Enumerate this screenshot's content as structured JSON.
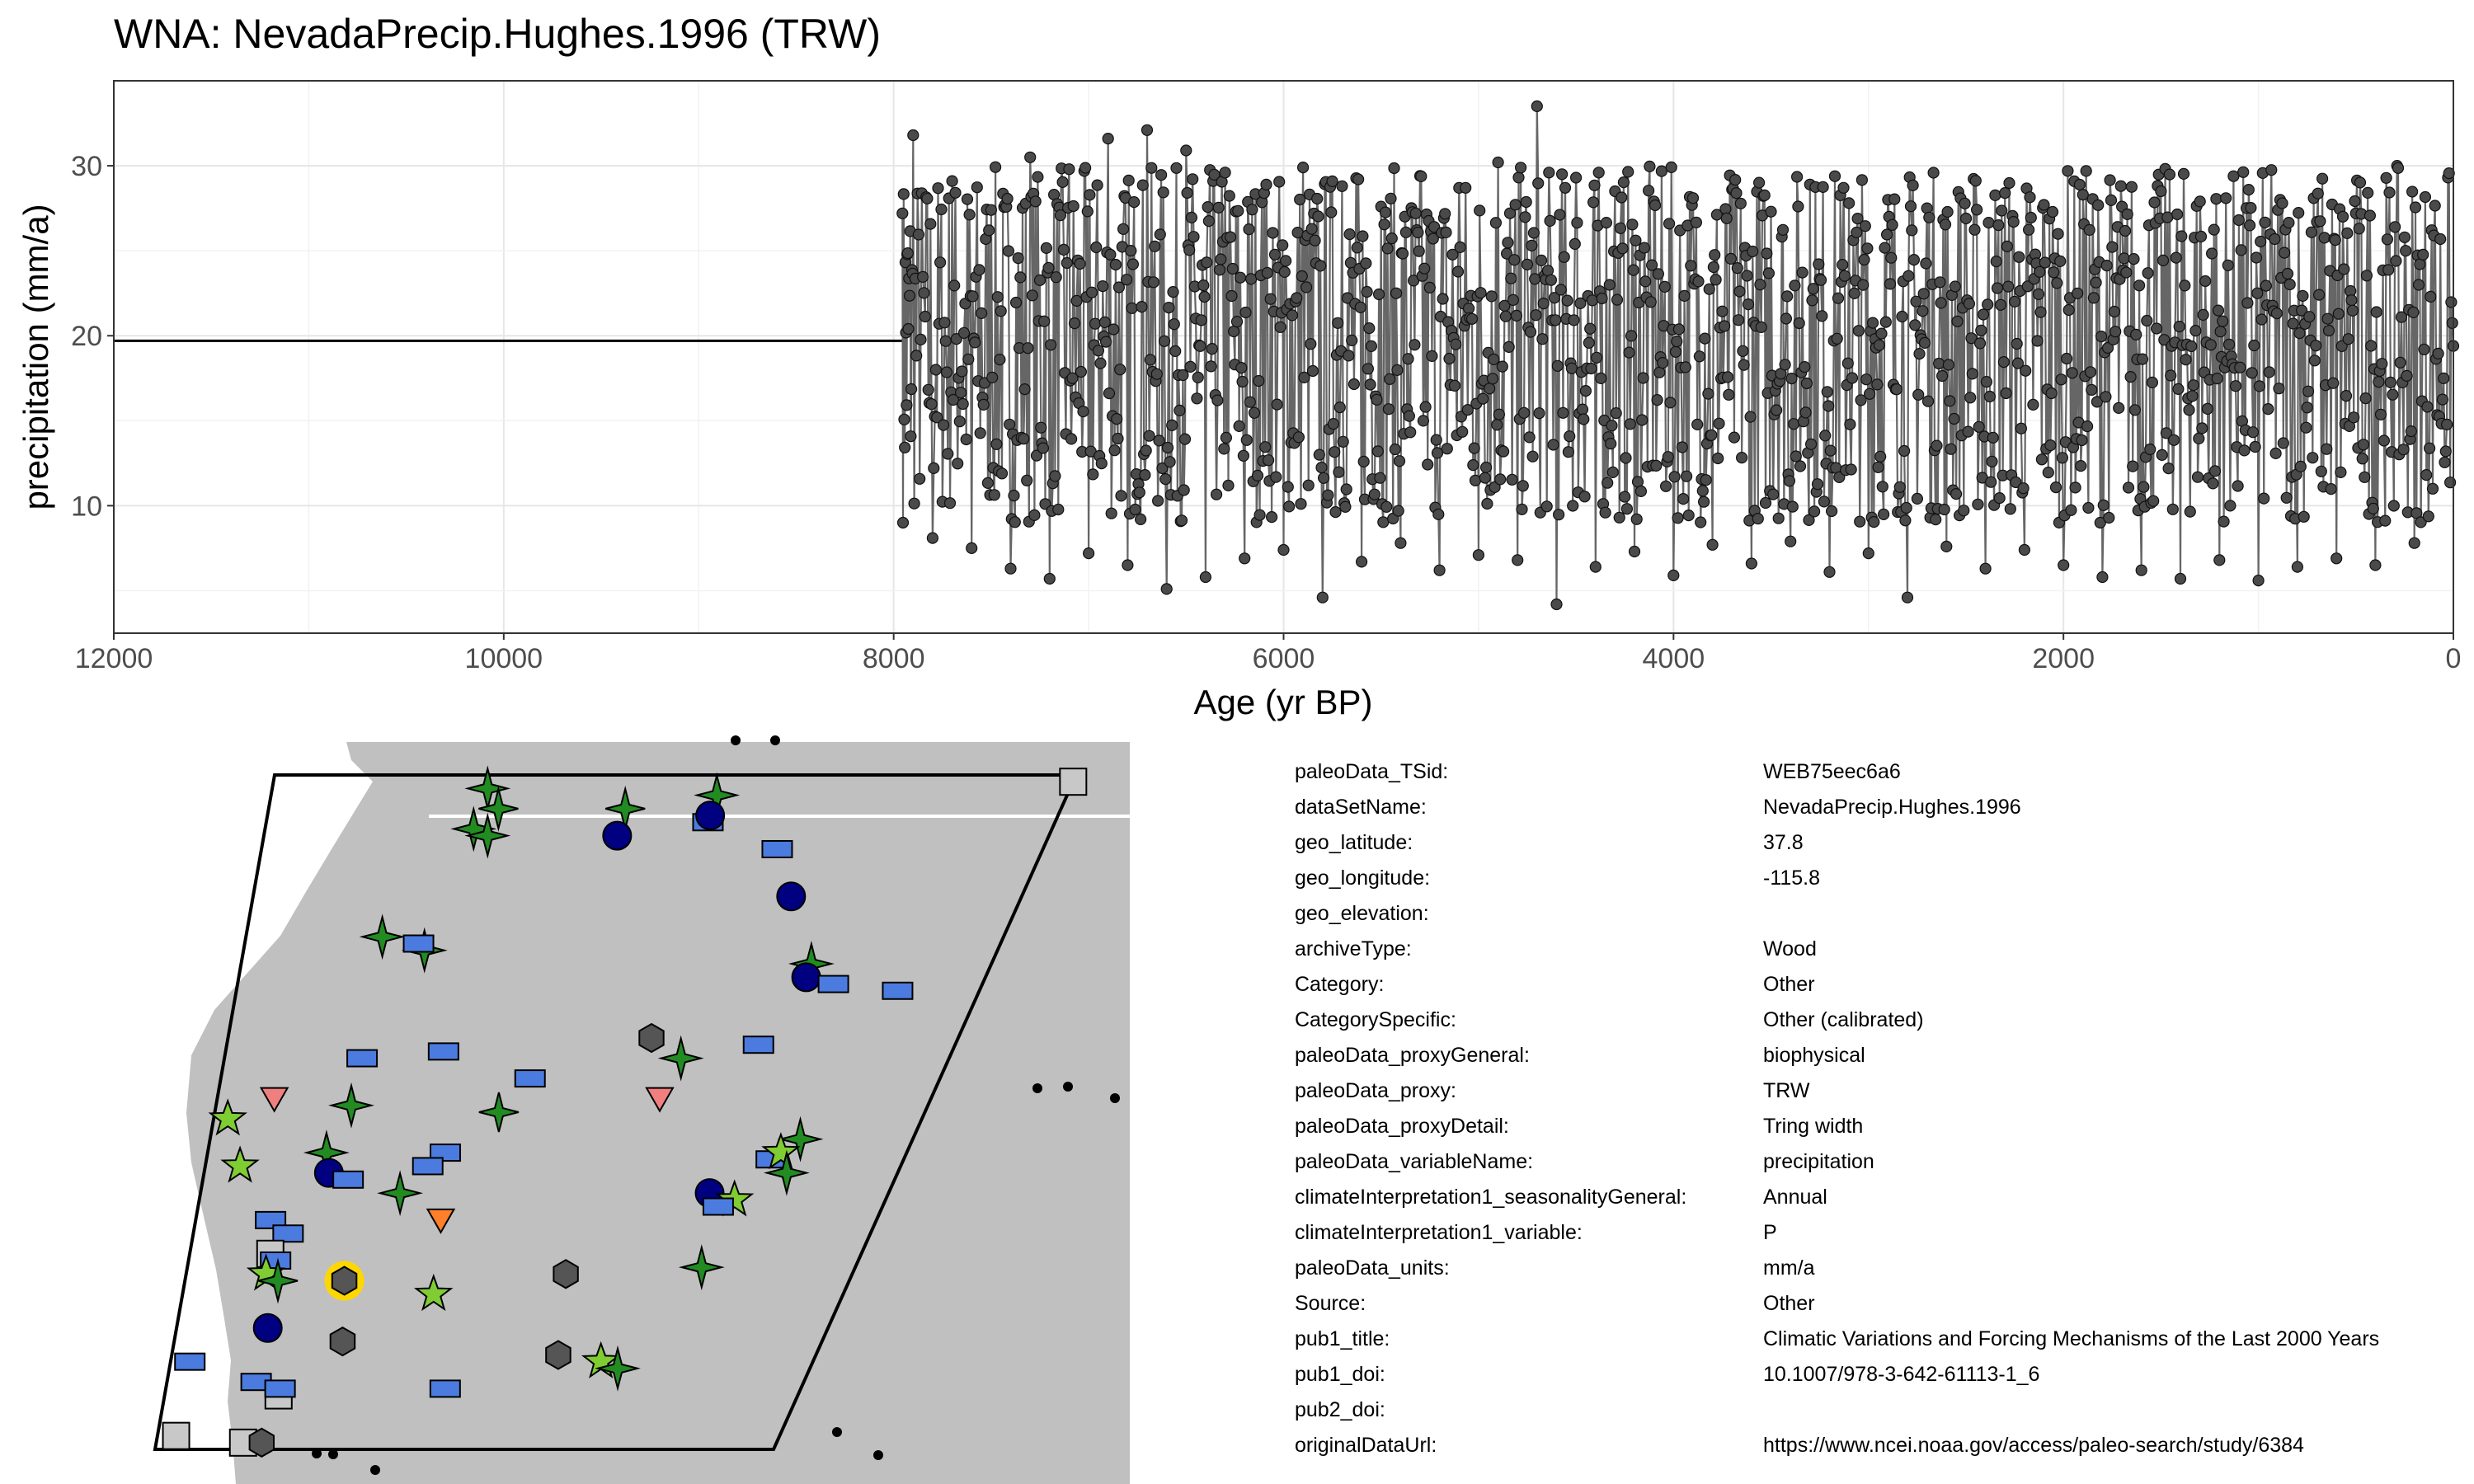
{
  "title": "WNA: NevadaPrecip.Hughes.1996 (TRW)",
  "chart_data": {
    "type": "line",
    "title": "WNA: NevadaPrecip.Hughes.1996 (TRW)",
    "xlabel": "Age (yr BP)",
    "ylabel": "precipitation (mm/a)",
    "xlim": [
      12000,
      0
    ],
    "x_reversed": true,
    "ylim": [
      2.5,
      35
    ],
    "x_ticks": [
      12000,
      10000,
      8000,
      6000,
      4000,
      2000,
      0
    ],
    "y_ticks": [
      10,
      20,
      30
    ],
    "grid": true,
    "record_age_range": [
      7955,
      0
    ],
    "record_value_range": [
      4,
      33.5
    ],
    "mean_before_record": 19.7,
    "series": [
      {
        "note_x": [
          7955,
          7900,
          7800,
          7700,
          7600,
          7500,
          7400,
          7300,
          7200,
          7100,
          7000,
          6900,
          6800,
          6700,
          6600,
          6500,
          6400,
          6300,
          6200,
          6100,
          6000,
          5900,
          5800,
          5700,
          5600,
          5500,
          5400,
          5300,
          5200,
          5100,
          5000,
          4900,
          4800,
          4700,
          4600,
          4500,
          4400,
          4300,
          4200,
          4100,
          4000,
          3900,
          3800,
          3700,
          3600,
          3500,
          3400,
          3300,
          3200,
          3100,
          3000,
          2900,
          2800,
          2700,
          2600,
          2500,
          2400,
          2300,
          2200,
          2100,
          2000,
          1900,
          1800,
          1700,
          1600,
          1500,
          1400,
          1300,
          1200,
          1100,
          1000,
          900,
          800,
          700,
          600,
          500,
          400,
          300,
          200,
          100,
          0
        ],
        "values": [
          27.2,
          31.8,
          8.1,
          29.1,
          7.5,
          27.4,
          6.3,
          30.5,
          5.7,
          29.8,
          7.2,
          31.6,
          6.5,
          32.1,
          5.1,
          30.9,
          5.8,
          29.6,
          6.9,
          28.4,
          7.4,
          29.9,
          4.6,
          28.8,
          6.7,
          27.6,
          7.8,
          29.4,
          6.2,
          28.7,
          7.1,
          30.2,
          6.8,
          33.5,
          4.2,
          29.3,
          6.4,
          28.5,
          7.3,
          27.9,
          5.9,
          28.1,
          7.7,
          28.6,
          6.6,
          27.3,
          7.9,
          28.9,
          6.1,
          27.8,
          7.2,
          28.0,
          4.6,
          27.5,
          7.6,
          26.9,
          6.3,
          28.4,
          7.4,
          27.7,
          6.5,
          28.3,
          5.8,
          27.6,
          6.2,
          28.5,
          5.7,
          27.9,
          6.8,
          26.8,
          5.6,
          27.4,
          6.4,
          26.7,
          6.9,
          27.2,
          6.5,
          26.4,
          7.8,
          25.9,
          19.4
        ]
      }
    ]
  },
  "map": {
    "land_color": "#c0c0c0",
    "water_color": "#ffffff",
    "symbols": [
      {
        "shape": "star4",
        "color": "#228b22",
        "u": 0.27,
        "v": 0.02
      },
      {
        "shape": "star4",
        "color": "#228b22",
        "u": 0.29,
        "v": 0.05
      },
      {
        "shape": "star4",
        "color": "#228b22",
        "u": 0.265,
        "v": 0.08
      },
      {
        "shape": "star4",
        "color": "#228b22",
        "u": 0.285,
        "v": 0.09
      },
      {
        "shape": "star4",
        "color": "#228b22",
        "u": 0.45,
        "v": 0.05
      },
      {
        "shape": "circle",
        "color": "#000080",
        "u": 0.45,
        "v": 0.09
      },
      {
        "shape": "star4",
        "color": "#228b22",
        "u": 0.56,
        "v": 0.03
      },
      {
        "shape": "rect",
        "color": "#4b7bde",
        "u": 0.56,
        "v": 0.07
      },
      {
        "shape": "circle",
        "color": "#000080",
        "u": 0.56,
        "v": 0.06
      },
      {
        "shape": "rect",
        "color": "#4b7bde",
        "u": 0.66,
        "v": 0.11
      },
      {
        "shape": "circle",
        "color": "#000080",
        "u": 0.7,
        "v": 0.18
      },
      {
        "shape": "square",
        "color": "#c8c8c8",
        "u": 1.0,
        "v": 0.01
      },
      {
        "shape": "star4",
        "color": "#228b22",
        "u": 0.18,
        "v": 0.24
      },
      {
        "shape": "star4",
        "color": "#228b22",
        "u": 0.24,
        "v": 0.26
      },
      {
        "shape": "rect",
        "color": "#4b7bde",
        "u": 0.23,
        "v": 0.25
      },
      {
        "shape": "star4",
        "color": "#228b22",
        "u": 0.76,
        "v": 0.28
      },
      {
        "shape": "circle",
        "color": "#000080",
        "u": 0.76,
        "v": 0.3
      },
      {
        "shape": "rect",
        "color": "#4b7bde",
        "u": 0.8,
        "v": 0.31
      },
      {
        "shape": "rect",
        "color": "#4b7bde",
        "u": 0.89,
        "v": 0.32
      },
      {
        "shape": "hexagon",
        "color": "#555555",
        "u": 0.58,
        "v": 0.39
      },
      {
        "shape": "rect",
        "color": "#4b7bde",
        "u": 0.73,
        "v": 0.4
      },
      {
        "shape": "star4",
        "color": "#228b22",
        "u": 0.63,
        "v": 0.42
      },
      {
        "shape": "rect",
        "color": "#4b7bde",
        "u": 0.19,
        "v": 0.42
      },
      {
        "shape": "rect",
        "color": "#4b7bde",
        "u": 0.3,
        "v": 0.41
      },
      {
        "shape": "rect",
        "color": "#4b7bde",
        "u": 0.43,
        "v": 0.45
      },
      {
        "shape": "star5",
        "color": "#7fcc33",
        "u": 0.02,
        "v": 0.51
      },
      {
        "shape": "triangle",
        "color": "#f08080",
        "u": 0.08,
        "v": 0.48
      },
      {
        "shape": "star4",
        "color": "#228b22",
        "u": 0.19,
        "v": 0.49
      },
      {
        "shape": "star4",
        "color": "#228b22",
        "u": 0.4,
        "v": 0.5
      },
      {
        "shape": "triangle",
        "color": "#f08080",
        "u": 0.62,
        "v": 0.48
      },
      {
        "shape": "star4",
        "color": "#228b22",
        "u": 0.17,
        "v": 0.56
      },
      {
        "shape": "circle",
        "color": "#000080",
        "u": 0.18,
        "v": 0.59
      },
      {
        "shape": "rect",
        "color": "#4b7bde",
        "u": 0.21,
        "v": 0.6
      },
      {
        "shape": "rect",
        "color": "#4b7bde",
        "u": 0.34,
        "v": 0.56
      },
      {
        "shape": "rect",
        "color": "#4b7bde",
        "u": 0.32,
        "v": 0.58
      },
      {
        "shape": "star5",
        "color": "#7fcc33",
        "u": 0.05,
        "v": 0.58
      },
      {
        "shape": "star4",
        "color": "#228b22",
        "u": 0.29,
        "v": 0.62
      },
      {
        "shape": "star4",
        "color": "#228b22",
        "u": 0.84,
        "v": 0.54
      },
      {
        "shape": "rect",
        "color": "#4b7bde",
        "u": 0.81,
        "v": 0.57
      },
      {
        "shape": "star5",
        "color": "#7fcc33",
        "u": 0.82,
        "v": 0.56
      },
      {
        "shape": "star4",
        "color": "#228b22",
        "u": 0.84,
        "v": 0.59
      },
      {
        "shape": "circle",
        "color": "#000080",
        "u": 0.74,
        "v": 0.62
      },
      {
        "shape": "star5",
        "color": "#7fcc33",
        "u": 0.78,
        "v": 0.63
      },
      {
        "shape": "rect",
        "color": "#4b7bde",
        "u": 0.76,
        "v": 0.64
      },
      {
        "shape": "triangle",
        "color": "#ff7f2a",
        "u": 0.36,
        "v": 0.66
      },
      {
        "shape": "rect",
        "color": "#4b7bde",
        "u": 0.11,
        "v": 0.66
      },
      {
        "shape": "rect",
        "color": "#4b7bde",
        "u": 0.14,
        "v": 0.68
      },
      {
        "shape": "square",
        "color": "#c8c8c8",
        "u": 0.12,
        "v": 0.71
      },
      {
        "shape": "rect",
        "color": "#4b7bde",
        "u": 0.13,
        "v": 0.72
      },
      {
        "shape": "star5",
        "color": "#7fcc33",
        "u": 0.12,
        "v": 0.74
      },
      {
        "shape": "star4",
        "color": "#228b22",
        "u": 0.14,
        "v": 0.75
      },
      {
        "shape": "hexagon",
        "color": "#555555",
        "u": 0.24,
        "v": 0.75,
        "highlight": "#ffd700"
      },
      {
        "shape": "star5",
        "color": "#7fcc33",
        "u": 0.38,
        "v": 0.77
      },
      {
        "shape": "hexagon",
        "color": "#555555",
        "u": 0.57,
        "v": 0.74
      },
      {
        "shape": "star4",
        "color": "#228b22",
        "u": 0.77,
        "v": 0.73
      },
      {
        "shape": "circle",
        "color": "#000080",
        "u": 0.14,
        "v": 0.82
      },
      {
        "shape": "hexagon",
        "color": "#555555",
        "u": 0.26,
        "v": 0.84
      },
      {
        "shape": "rect",
        "color": "#4b7bde",
        "u": 0.03,
        "v": 0.87
      },
      {
        "shape": "rect",
        "color": "#4b7bde",
        "u": 0.14,
        "v": 0.9
      },
      {
        "shape": "square",
        "color": "#c8c8c8",
        "u": 0.18,
        "v": 0.92
      },
      {
        "shape": "rect",
        "color": "#4b7bde",
        "u": 0.18,
        "v": 0.91
      },
      {
        "shape": "rect",
        "color": "#4b7bde",
        "u": 0.44,
        "v": 0.91
      },
      {
        "shape": "hexagon",
        "color": "#555555",
        "u": 0.6,
        "v": 0.86
      },
      {
        "shape": "star5",
        "color": "#7fcc33",
        "u": 0.67,
        "v": 0.87
      },
      {
        "shape": "star4",
        "color": "#228b22",
        "u": 0.7,
        "v": 0.88
      },
      {
        "shape": "square",
        "color": "#c8c8c8",
        "u": 0.03,
        "v": 0.98
      },
      {
        "shape": "square",
        "color": "#c8c8c8",
        "u": 0.14,
        "v": 0.99
      },
      {
        "shape": "hexagon",
        "color": "#555555",
        "u": 0.17,
        "v": 0.99
      }
    ]
  },
  "metadata": [
    {
      "key": "paleoData_TSid:",
      "value": "WEB75eec6a6"
    },
    {
      "key": "dataSetName:",
      "value": "NevadaPrecip.Hughes.1996"
    },
    {
      "key": "geo_latitude:",
      "value": "37.8"
    },
    {
      "key": "geo_longitude:",
      "value": "-115.8"
    },
    {
      "key": "geo_elevation:",
      "value": ""
    },
    {
      "key": "archiveType:",
      "value": "Wood"
    },
    {
      "key": "Category:",
      "value": "Other"
    },
    {
      "key": "CategorySpecific:",
      "value": "Other (calibrated)"
    },
    {
      "key": "paleoData_proxyGeneral:",
      "value": "biophysical"
    },
    {
      "key": "paleoData_proxy:",
      "value": "TRW"
    },
    {
      "key": "paleoData_proxyDetail:",
      "value": "Tring width"
    },
    {
      "key": "paleoData_variableName:",
      "value": "precipitation"
    },
    {
      "key": "climateInterpretation1_seasonalityGeneral:",
      "value": "Annual"
    },
    {
      "key": "climateInterpretation1_variable:",
      "value": "P"
    },
    {
      "key": "paleoData_units:",
      "value": "mm/a"
    },
    {
      "key": "Source:",
      "value": "Other"
    },
    {
      "key": "pub1_title:",
      "value": "Climatic Variations and Forcing Mechanisms of the Last 2000 Years"
    },
    {
      "key": "pub1_doi:",
      "value": "10.1007/978-3-642-61113-1_6"
    },
    {
      "key": "pub2_doi:",
      "value": ""
    },
    {
      "key": "originalDataUrl:",
      "value": "https://www.ncei.noaa.gov/access/paleo-search/study/6384"
    }
  ]
}
